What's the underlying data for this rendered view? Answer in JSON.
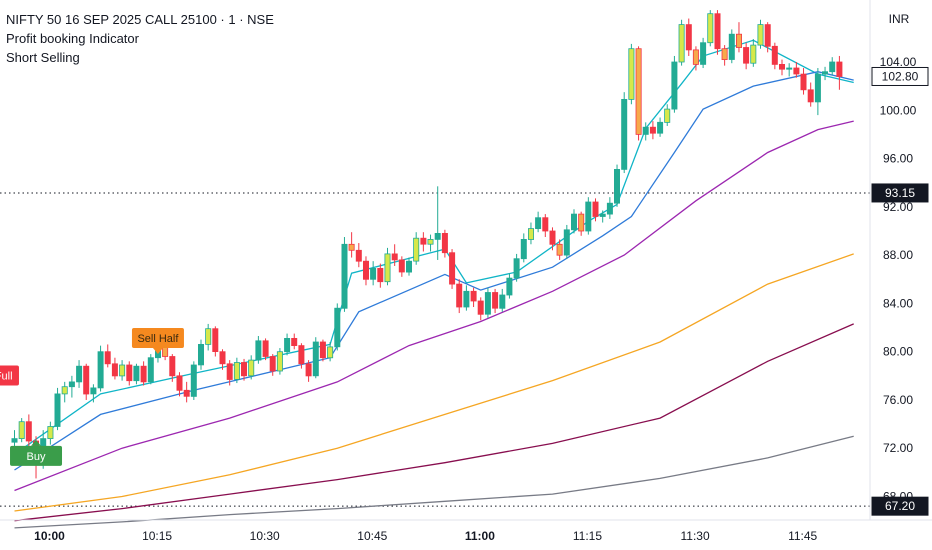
{
  "header": {
    "symbol_line": "NIFTY 50 16 SEP 2025 CALL 25100 · 1 · NSE",
    "indicator_1": "Profit booking Indicator",
    "indicator_2": "Short Selling"
  },
  "price_axis": {
    "currency": "INR",
    "ticks": [
      "104.00",
      "100.00",
      "96.00",
      "92.00",
      "88.00",
      "84.00",
      "80.00",
      "76.00",
      "72.00",
      "68.00"
    ],
    "tick_values": [
      104,
      100,
      96,
      92,
      88,
      84,
      80,
      76,
      72,
      68
    ]
  },
  "time_axis": {
    "ticks": [
      "10:00",
      "10:15",
      "10:30",
      "10:45",
      "11:00",
      "11:15",
      "11:30",
      "11:45"
    ],
    "bold": [
      "10:00",
      "11:00"
    ],
    "tick_bars": [
      0,
      15,
      30,
      45,
      60,
      75,
      90,
      105
    ]
  },
  "colors": {
    "bull": "#22ab94",
    "bear": "#f23645",
    "bull_highlight": "#d6e84a",
    "bear_highlight": "#f7a94b",
    "ema_fast": "#10b5c7",
    "ema_mid": "#2f7bd9",
    "ema_purple": "#9c27b0",
    "ema_orange": "#f5a623",
    "ema_maroon": "#880e4f",
    "ema_gray": "#787b86",
    "sell_full": "#f23645",
    "sell_half": "#f5891f",
    "buy": "#3a9d4a",
    "price_line": "#131722"
  },
  "price_labels": {
    "current": "102.80",
    "crosshair": "93.15",
    "low": "67.20"
  },
  "signals": [
    {
      "label": "Sell Full",
      "bar": -3,
      "price": 77.2,
      "type": "sell_full"
    },
    {
      "label": "Buy",
      "bar": 3,
      "price": 72.2,
      "type": "buy"
    },
    {
      "label": "Sell Half",
      "bar": 20,
      "price": 80.3,
      "type": "sell_half"
    }
  ],
  "chart_data": {
    "type": "candlestick",
    "title": "NIFTY 50 16 SEP 2025 CALL 25100 · 1 · NSE",
    "ylim": [
      66.4,
      108.3
    ],
    "candles": [
      [
        72.5,
        73.5,
        71.5,
        72.8
      ],
      [
        72.8,
        74.5,
        72.5,
        74.2
      ],
      [
        74.2,
        74.8,
        72.0,
        72.6
      ],
      [
        72.6,
        73.0,
        69.5,
        70.9
      ],
      [
        70.9,
        73.5,
        70.3,
        72.8
      ],
      [
        72.8,
        74.2,
        72.3,
        73.8
      ],
      [
        73.8,
        77.0,
        73.5,
        76.5
      ],
      [
        76.5,
        77.5,
        75.8,
        77.1
      ],
      [
        77.1,
        78.0,
        76.2,
        77.5
      ],
      [
        77.5,
        79.3,
        77.0,
        78.8
      ],
      [
        78.8,
        79.0,
        76.0,
        76.5
      ],
      [
        76.5,
        77.3,
        75.8,
        77.0
      ],
      [
        77.0,
        80.5,
        76.7,
        80.0
      ],
      [
        80.0,
        80.6,
        78.7,
        79.0
      ],
      [
        79.0,
        79.5,
        77.7,
        78.0
      ],
      [
        78.0,
        79.3,
        77.6,
        78.9
      ],
      [
        78.9,
        79.2,
        77.2,
        77.6
      ],
      [
        77.6,
        79.0,
        77.3,
        78.8
      ],
      [
        78.8,
        79.2,
        77.2,
        77.5
      ],
      [
        77.5,
        79.8,
        77.3,
        79.5
      ],
      [
        79.5,
        81.0,
        79.1,
        80.8
      ],
      [
        80.8,
        80.9,
        79.3,
        79.6
      ],
      [
        79.6,
        79.8,
        77.5,
        78.0
      ],
      [
        78.0,
        78.3,
        76.3,
        76.8
      ],
      [
        76.8,
        77.5,
        75.8,
        76.3
      ],
      [
        76.3,
        79.2,
        76.0,
        78.9
      ],
      [
        78.9,
        81.0,
        78.5,
        80.6
      ],
      [
        80.6,
        82.3,
        80.1,
        81.9
      ],
      [
        81.9,
        82.1,
        79.6,
        80.0
      ],
      [
        80.0,
        80.2,
        78.5,
        79.0
      ],
      [
        79.0,
        79.3,
        77.2,
        77.7
      ],
      [
        77.7,
        79.5,
        77.4,
        79.1
      ],
      [
        79.1,
        79.4,
        77.6,
        78.0
      ],
      [
        78.0,
        79.7,
        77.7,
        79.3
      ],
      [
        79.3,
        81.3,
        79.0,
        80.9
      ],
      [
        80.9,
        81.1,
        79.3,
        79.6
      ],
      [
        79.6,
        79.8,
        78.0,
        78.4
      ],
      [
        78.4,
        80.3,
        78.1,
        80.0
      ],
      [
        80.0,
        81.5,
        79.7,
        81.1
      ],
      [
        81.1,
        81.5,
        80.2,
        80.5
      ],
      [
        80.5,
        80.7,
        78.6,
        79.0
      ],
      [
        79.0,
        79.3,
        77.5,
        78.0
      ],
      [
        78.0,
        81.2,
        77.8,
        80.8
      ],
      [
        80.8,
        81.0,
        79.2,
        79.5
      ],
      [
        79.5,
        80.8,
        79.2,
        80.4
      ],
      [
        80.4,
        84.0,
        80.1,
        83.6
      ],
      [
        83.6,
        89.5,
        83.3,
        88.9
      ],
      [
        88.9,
        89.9,
        87.8,
        88.4
      ],
      [
        88.4,
        89.0,
        87.0,
        87.5
      ],
      [
        87.5,
        87.9,
        85.5,
        86.0
      ],
      [
        86.0,
        87.5,
        85.5,
        86.9
      ],
      [
        86.9,
        87.3,
        85.3,
        85.8
      ],
      [
        85.8,
        88.6,
        85.5,
        88.1
      ],
      [
        88.1,
        88.9,
        87.1,
        87.6
      ],
      [
        87.6,
        87.9,
        86.2,
        86.6
      ],
      [
        86.6,
        87.8,
        86.3,
        87.5
      ],
      [
        87.5,
        89.9,
        87.2,
        89.4
      ],
      [
        89.4,
        89.9,
        88.3,
        88.9
      ],
      [
        88.9,
        89.7,
        88.3,
        89.3
      ],
      [
        89.3,
        93.7,
        87.6,
        89.8
      ],
      [
        89.8,
        90.1,
        87.8,
        88.2
      ],
      [
        88.2,
        88.5,
        85.2,
        85.6
      ],
      [
        85.6,
        86.0,
        83.2,
        83.7
      ],
      [
        83.7,
        85.5,
        83.4,
        85.0
      ],
      [
        85.0,
        85.3,
        83.7,
        84.2
      ],
      [
        84.2,
        84.5,
        82.6,
        83.1
      ],
      [
        83.1,
        85.3,
        82.8,
        84.9
      ],
      [
        84.9,
        85.2,
        83.2,
        83.6
      ],
      [
        83.6,
        85.2,
        83.3,
        84.7
      ],
      [
        84.7,
        86.5,
        84.4,
        86.1
      ],
      [
        86.1,
        88.1,
        85.8,
        87.7
      ],
      [
        87.7,
        89.8,
        87.4,
        89.3
      ],
      [
        89.3,
        90.7,
        88.9,
        90.2
      ],
      [
        90.2,
        91.6,
        89.9,
        91.1
      ],
      [
        91.1,
        91.4,
        89.5,
        90.0
      ],
      [
        90.0,
        90.3,
        88.4,
        88.9
      ],
      [
        88.9,
        89.3,
        87.6,
        88.0
      ],
      [
        88.0,
        90.5,
        87.7,
        90.1
      ],
      [
        90.1,
        91.8,
        89.8,
        91.4
      ],
      [
        91.4,
        91.6,
        89.6,
        90.0
      ],
      [
        90.0,
        92.8,
        89.7,
        92.4
      ],
      [
        92.4,
        92.7,
        90.8,
        91.2
      ],
      [
        91.2,
        91.7,
        90.7,
        91.4
      ],
      [
        91.4,
        92.8,
        91.0,
        92.3
      ],
      [
        92.3,
        95.5,
        92.0,
        95.1
      ],
      [
        95.1,
        101.5,
        94.8,
        100.9
      ],
      [
        100.9,
        105.5,
        100.5,
        105.1
      ],
      [
        105.1,
        105.3,
        97.5,
        98.0
      ],
      [
        98.0,
        99.0,
        97.5,
        98.6
      ],
      [
        98.6,
        99.1,
        97.6,
        98.1
      ],
      [
        98.1,
        99.4,
        97.8,
        99.0
      ],
      [
        99.0,
        100.5,
        98.7,
        100.1
      ],
      [
        100.1,
        104.5,
        99.8,
        104.0
      ],
      [
        104.0,
        107.5,
        103.7,
        107.1
      ],
      [
        107.1,
        107.6,
        104.5,
        105.0
      ],
      [
        105.0,
        105.3,
        103.3,
        103.8
      ],
      [
        103.8,
        106.0,
        103.5,
        105.6
      ],
      [
        105.6,
        108.3,
        105.3,
        108.0
      ],
      [
        108.0,
        108.3,
        104.6,
        105.1
      ],
      [
        105.1,
        105.4,
        103.7,
        104.2
      ],
      [
        104.2,
        106.7,
        103.9,
        106.3
      ],
      [
        106.3,
        107.3,
        104.8,
        105.2
      ],
      [
        105.2,
        105.6,
        103.4,
        103.9
      ],
      [
        103.9,
        105.9,
        103.6,
        105.4
      ],
      [
        105.4,
        107.5,
        105.1,
        107.1
      ],
      [
        107.1,
        107.3,
        104.8,
        105.3
      ],
      [
        105.3,
        105.6,
        103.4,
        103.8
      ],
      [
        103.8,
        104.2,
        102.9,
        103.4
      ],
      [
        103.4,
        103.9,
        102.8,
        103.5
      ],
      [
        103.5,
        104.0,
        102.7,
        103.0
      ],
      [
        103.0,
        103.5,
        101.3,
        101.7
      ],
      [
        101.7,
        102.3,
        100.3,
        100.7
      ],
      [
        100.7,
        103.5,
        99.6,
        103.0
      ],
      [
        103.0,
        103.6,
        102.5,
        103.2
      ],
      [
        103.2,
        104.4,
        102.9,
        104.0
      ],
      [
        104.0,
        104.5,
        101.7,
        102.8
      ]
    ],
    "highlight_bars": [
      1,
      5,
      7,
      15,
      21,
      27,
      31,
      33,
      37,
      44,
      47,
      52,
      56,
      58,
      72,
      76,
      79,
      86,
      87,
      91,
      93,
      95,
      97,
      99,
      101,
      103,
      104
    ],
    "emas": [
      {
        "color_key": "ema_fast",
        "values": [
          [
            0,
            71.5
          ],
          [
            12,
            76.5
          ],
          [
            25,
            78.2
          ],
          [
            44,
            80.6
          ],
          [
            47,
            86.5
          ],
          [
            60,
            88.5
          ],
          [
            63,
            85.7
          ],
          [
            70,
            86.6
          ],
          [
            80,
            90.8
          ],
          [
            84,
            92.2
          ],
          [
            88,
            98.5
          ],
          [
            93,
            102.2
          ],
          [
            96,
            104.5
          ],
          [
            103,
            105.8
          ],
          [
            112,
            103.0
          ],
          [
            117,
            102.3
          ]
        ]
      },
      {
        "color_key": "ema_mid",
        "values": [
          [
            0,
            70.2
          ],
          [
            12,
            74.8
          ],
          [
            25,
            76.8
          ],
          [
            44,
            79.5
          ],
          [
            48,
            83.3
          ],
          [
            60,
            86.4
          ],
          [
            65,
            85.1
          ],
          [
            75,
            87.0
          ],
          [
            82,
            89.6
          ],
          [
            86,
            91.2
          ],
          [
            92,
            96.5
          ],
          [
            96,
            100.1
          ],
          [
            103,
            102.0
          ],
          [
            112,
            103.2
          ],
          [
            117,
            102.5
          ]
        ]
      },
      {
        "color_key": "ema_purple",
        "values": [
          [
            0,
            68.5
          ],
          [
            15,
            72.0
          ],
          [
            30,
            74.5
          ],
          [
            45,
            77.5
          ],
          [
            55,
            80.5
          ],
          [
            65,
            82.5
          ],
          [
            75,
            85.0
          ],
          [
            85,
            88.0
          ],
          [
            95,
            92.5
          ],
          [
            105,
            96.5
          ],
          [
            112,
            98.4
          ],
          [
            117,
            99.1
          ]
        ]
      },
      {
        "color_key": "ema_orange",
        "values": [
          [
            0,
            66.8
          ],
          [
            15,
            68.0
          ],
          [
            30,
            69.8
          ],
          [
            45,
            72.0
          ],
          [
            60,
            74.8
          ],
          [
            75,
            77.6
          ],
          [
            90,
            80.8
          ],
          [
            105,
            85.6
          ],
          [
            117,
            88.1
          ]
        ]
      },
      {
        "color_key": "ema_maroon",
        "values": [
          [
            0,
            66.0
          ],
          [
            15,
            67.0
          ],
          [
            30,
            68.2
          ],
          [
            45,
            69.4
          ],
          [
            60,
            70.8
          ],
          [
            75,
            72.4
          ],
          [
            90,
            74.5
          ],
          [
            105,
            79.2
          ],
          [
            117,
            82.3
          ]
        ]
      },
      {
        "color_key": "ema_gray",
        "values": [
          [
            0,
            65.4
          ],
          [
            15,
            65.9
          ],
          [
            30,
            66.5
          ],
          [
            45,
            67.0
          ],
          [
            60,
            67.6
          ],
          [
            75,
            68.2
          ],
          [
            90,
            69.5
          ],
          [
            105,
            71.2
          ],
          [
            117,
            73.0
          ]
        ]
      }
    ],
    "crosshair_price": 93.15,
    "low_line_price": 67.2,
    "current_price": 102.8,
    "xlabel": "",
    "ylabel": ""
  }
}
